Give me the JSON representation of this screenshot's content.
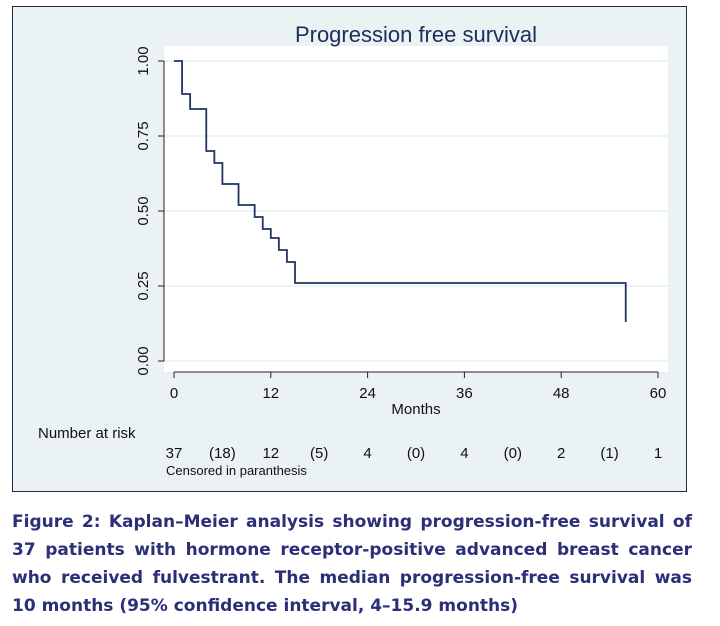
{
  "chart_data": {
    "type": "line",
    "title": "Progression free survival",
    "xlabel": "Months",
    "ylabel": "",
    "xlim": [
      0,
      60
    ],
    "ylim": [
      0,
      1
    ],
    "x_ticks": [
      0,
      12,
      24,
      36,
      48,
      60
    ],
    "y_ticks": [
      "0.00",
      "0.25",
      "0.50",
      "0.75",
      "1.00"
    ],
    "grid": "horizontal",
    "series": [
      {
        "step": "post",
        "color": "#1f3560",
        "x": [
          0,
          1,
          2,
          4,
          5,
          6,
          8,
          10,
          11,
          12,
          13,
          14,
          15,
          56,
          56
        ],
        "y": [
          1.0,
          0.89,
          0.84,
          0.7,
          0.66,
          0.59,
          0.52,
          0.48,
          0.44,
          0.41,
          0.37,
          0.33,
          0.26,
          0.26,
          0.13
        ]
      }
    ],
    "risk_table": {
      "label": "Number at risk",
      "values": [
        "37",
        "(18)",
        "12",
        "(5)",
        "4",
        "(0)",
        "4",
        "(0)",
        "2",
        "(1)",
        "1"
      ],
      "note": "Censored in paranthesis"
    }
  },
  "caption": "Figure 2: Kaplan–Meier analysis showing progression-free survival of 37 patients with hormone receptor-positive advanced breast cancer who received fulvestrant. The median progression-free survival was 10 months (95% confidence interval, 4–15.9 months)"
}
